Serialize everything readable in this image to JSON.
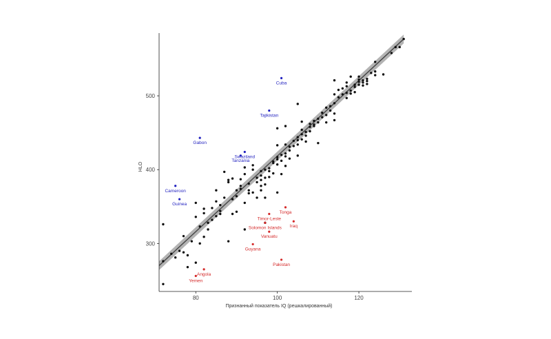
{
  "chart_data": {
    "type": "scatter",
    "xlabel": "Признанный показатель IQ (решкалированный)",
    "ylabel": "HLO",
    "xlim": [
      71,
      133
    ],
    "ylim": [
      235,
      585
    ],
    "x_ticks": [
      80,
      100,
      120
    ],
    "y_ticks": [
      300,
      400,
      500
    ],
    "grid": false,
    "trend_line": {
      "x": [
        71,
        131
      ],
      "y": [
        270,
        577
      ],
      "band_halfwidth": 6
    },
    "colors": {
      "points": "#111111",
      "blue": "#1f1fbf",
      "red": "#d42a2a",
      "band": "#999999",
      "line": "#444444"
    },
    "points": [
      [
        72,
        245
      ],
      [
        72,
        326
      ],
      [
        72,
        276
      ],
      [
        74,
        286
      ],
      [
        75,
        281
      ],
      [
        76,
        290
      ],
      [
        77,
        288
      ],
      [
        77,
        310
      ],
      [
        78,
        268
      ],
      [
        78,
        284
      ],
      [
        79,
        303
      ],
      [
        80,
        336
      ],
      [
        80,
        355
      ],
      [
        80,
        274
      ],
      [
        81,
        323
      ],
      [
        81,
        300
      ],
      [
        82,
        309
      ],
      [
        82,
        341
      ],
      [
        82,
        347
      ],
      [
        83,
        319
      ],
      [
        83,
        328
      ],
      [
        84,
        348
      ],
      [
        84,
        332
      ],
      [
        85,
        337
      ],
      [
        85,
        357
      ],
      [
        85,
        372
      ],
      [
        86,
        344
      ],
      [
        86,
        340
      ],
      [
        86,
        352
      ],
      [
        87,
        362
      ],
      [
        87,
        397
      ],
      [
        88,
        383
      ],
      [
        88,
        303
      ],
      [
        88,
        386
      ],
      [
        89,
        340
      ],
      [
        89,
        360
      ],
      [
        90,
        364
      ],
      [
        90,
        372
      ],
      [
        90,
        343
      ],
      [
        91,
        378
      ],
      [
        91,
        387
      ],
      [
        92,
        394
      ],
      [
        92,
        355
      ],
      [
        92,
        319
      ],
      [
        92,
        403
      ],
      [
        93,
        368
      ],
      [
        93,
        381
      ],
      [
        93,
        372
      ],
      [
        94,
        369
      ],
      [
        94,
        400
      ],
      [
        95,
        383
      ],
      [
        95,
        389
      ],
      [
        95,
        362
      ],
      [
        96,
        386
      ],
      [
        96,
        392
      ],
      [
        96,
        378
      ],
      [
        96,
        372
      ],
      [
        97,
        380
      ],
      [
        97,
        400
      ],
      [
        97,
        389
      ],
      [
        97,
        362
      ],
      [
        97,
        328
      ],
      [
        98,
        398
      ],
      [
        98,
        402
      ],
      [
        98,
        390
      ],
      [
        99,
        411
      ],
      [
        99,
        395
      ],
      [
        99,
        409
      ],
      [
        100,
        414
      ],
      [
        100,
        417
      ],
      [
        100,
        407
      ],
      [
        100,
        433
      ],
      [
        100,
        456
      ],
      [
        100,
        369
      ],
      [
        101,
        412
      ],
      [
        101,
        420
      ],
      [
        101,
        394
      ],
      [
        102,
        422
      ],
      [
        102,
        405
      ],
      [
        102,
        434
      ],
      [
        102,
        459
      ],
      [
        103,
        426
      ],
      [
        103,
        431
      ],
      [
        103,
        415
      ],
      [
        104,
        432
      ],
      [
        104,
        439
      ],
      [
        105,
        444
      ],
      [
        105,
        440
      ],
      [
        105,
        434
      ],
      [
        105,
        419
      ],
      [
        105,
        489
      ],
      [
        106,
        448
      ],
      [
        106,
        454
      ],
      [
        106,
        441
      ],
      [
        107,
        451
      ],
      [
        107,
        446
      ],
      [
        107,
        438
      ],
      [
        108,
        458
      ],
      [
        108,
        462
      ],
      [
        108,
        452
      ],
      [
        109,
        461
      ],
      [
        109,
        466
      ],
      [
        109,
        459
      ],
      [
        110,
        464
      ],
      [
        110,
        469
      ],
      [
        110,
        436
      ],
      [
        111,
        471
      ],
      [
        111,
        477
      ],
      [
        112,
        474
      ],
      [
        112,
        484
      ],
      [
        113,
        486
      ],
      [
        113,
        480
      ],
      [
        114,
        490
      ],
      [
        114,
        476
      ],
      [
        114,
        521
      ],
      [
        114,
        502
      ],
      [
        114,
        467
      ],
      [
        115,
        498
      ],
      [
        115,
        508
      ],
      [
        116,
        502
      ],
      [
        116,
        510
      ],
      [
        117,
        504
      ],
      [
        117,
        513
      ],
      [
        117,
        518
      ],
      [
        117,
        497
      ],
      [
        118,
        507
      ],
      [
        118,
        503
      ],
      [
        118,
        526
      ],
      [
        119,
        515
      ],
      [
        119,
        512
      ],
      [
        119,
        505
      ],
      [
        120,
        519
      ],
      [
        120,
        515
      ],
      [
        120,
        522
      ],
      [
        120,
        526
      ],
      [
        121,
        521
      ],
      [
        121,
        518
      ],
      [
        121,
        514
      ],
      [
        122,
        520
      ],
      [
        122,
        523
      ],
      [
        122,
        516
      ],
      [
        123,
        531
      ],
      [
        124,
        546
      ],
      [
        124,
        533
      ],
      [
        124,
        528
      ],
      [
        128,
        558
      ],
      [
        129,
        566
      ],
      [
        130,
        566
      ],
      [
        131,
        577
      ],
      [
        126,
        529
      ],
      [
        112,
        464
      ],
      [
        106,
        465
      ],
      [
        102,
        418
      ],
      [
        96,
        398
      ],
      [
        94,
        406
      ],
      [
        91,
        374
      ],
      [
        89,
        388
      ]
    ],
    "annotations": [
      {
        "label": "Cuba",
        "x": 101,
        "y": 524,
        "color": "blue"
      },
      {
        "label": "Tajikistan",
        "x": 98,
        "y": 480,
        "color": "blue"
      },
      {
        "label": "Gabon",
        "x": 81,
        "y": 443,
        "color": "blue"
      },
      {
        "label": "Swaziland",
        "x": 92,
        "y": 424,
        "color": "blue"
      },
      {
        "label": "Tanzania",
        "x": 91,
        "y": 419,
        "color": "blue"
      },
      {
        "label": "Cameroon",
        "x": 75,
        "y": 378,
        "color": "blue"
      },
      {
        "label": "Guinea",
        "x": 76,
        "y": 360,
        "color": "blue"
      },
      {
        "label": "Tonga",
        "x": 102,
        "y": 349,
        "color": "red"
      },
      {
        "label": "Timor-Leste",
        "x": 98,
        "y": 340,
        "color": "red"
      },
      {
        "label": "Iraq",
        "x": 104,
        "y": 330,
        "color": "red"
      },
      {
        "label": "Solomon Islands",
        "x": 97,
        "y": 328,
        "color": "red"
      },
      {
        "label": "Vanuatu",
        "x": 98,
        "y": 316,
        "color": "red"
      },
      {
        "label": "Guyana",
        "x": 94,
        "y": 299,
        "color": "red"
      },
      {
        "label": "Pakistan",
        "x": 101,
        "y": 278,
        "color": "red"
      },
      {
        "label": "Angola",
        "x": 82,
        "y": 265,
        "color": "red"
      },
      {
        "label": "Yemen",
        "x": 80,
        "y": 256,
        "color": "red"
      }
    ]
  }
}
